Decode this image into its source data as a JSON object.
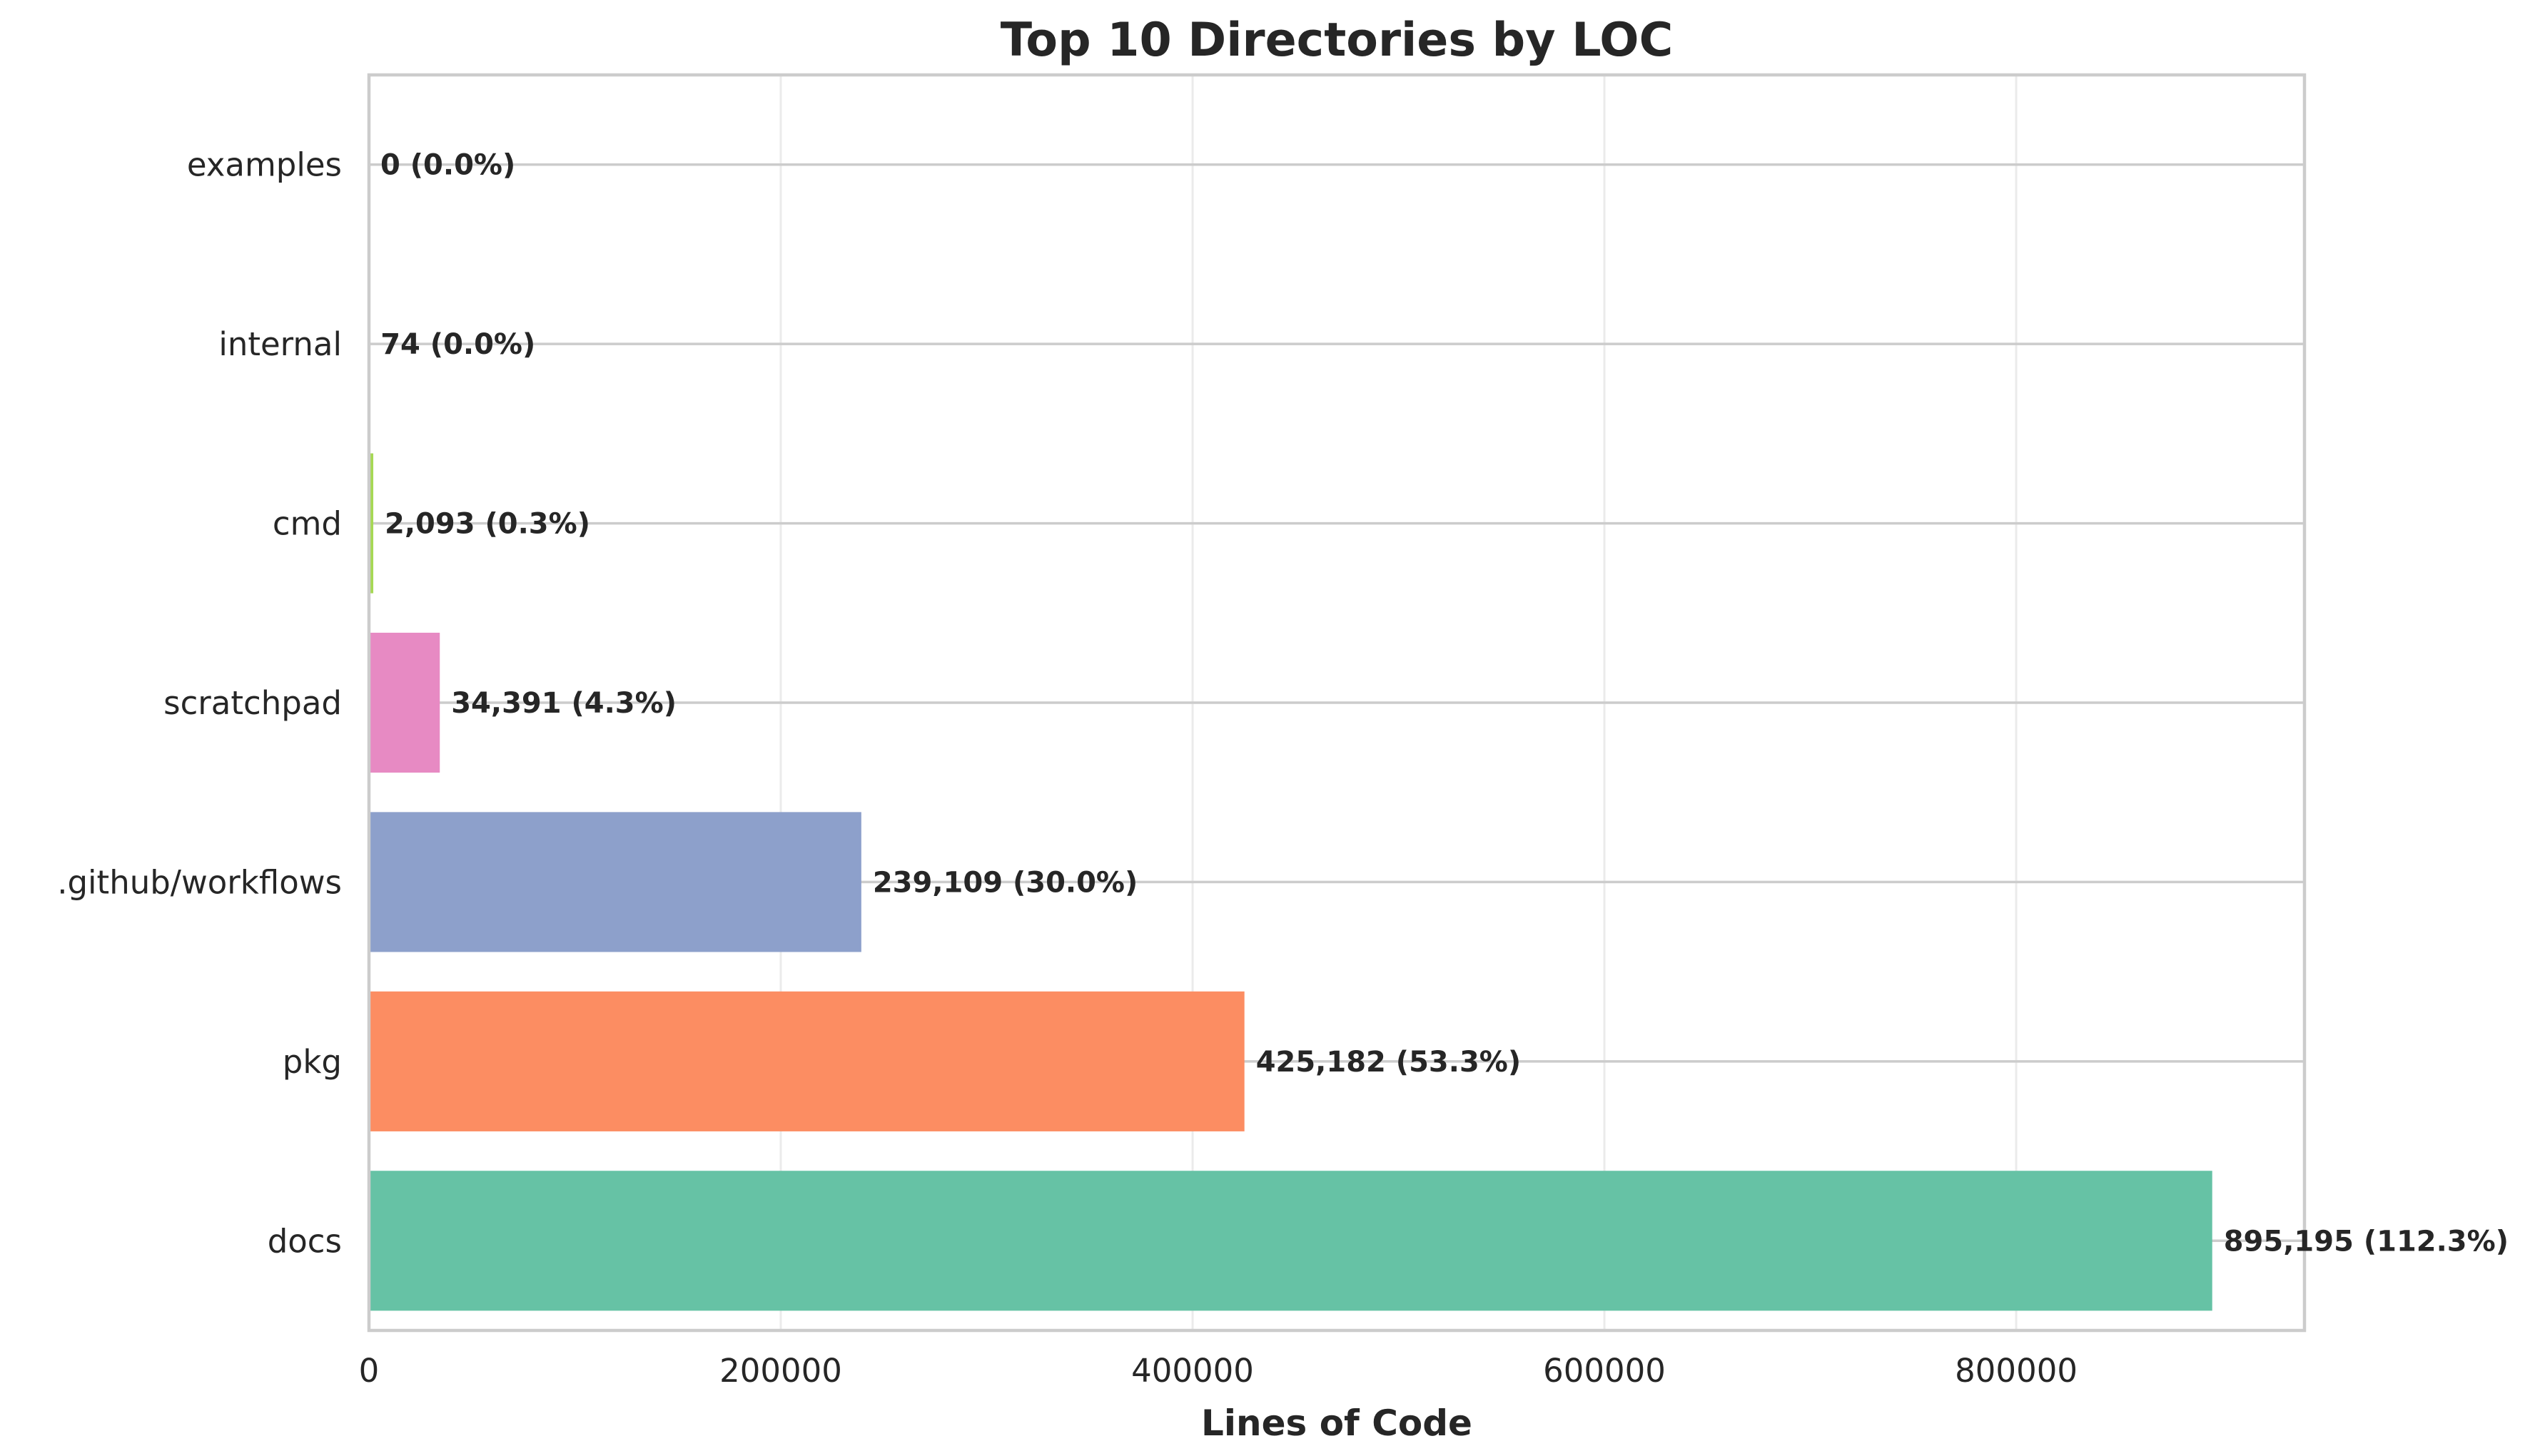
{
  "chart_data": {
    "type": "bar",
    "orientation": "horizontal",
    "title": "Top 10 Directories by LOC",
    "xlabel": "Lines of Code",
    "ylabel": "",
    "xlim": [
      0,
      940000
    ],
    "xticks": [
      0,
      200000,
      400000,
      600000,
      800000
    ],
    "xtick_labels": [
      "0",
      "200000",
      "400000",
      "600000",
      "800000"
    ],
    "grid": true,
    "categories": [
      "docs",
      "pkg",
      ".github/workflows",
      "scratchpad",
      "cmd",
      "internal",
      "examples"
    ],
    "values": [
      895195,
      425182,
      239109,
      34391,
      2093,
      74,
      0
    ],
    "labels": [
      "895,195 (112.3%)",
      "425,182 (53.3%)",
      "239,109 (30.0%)",
      "34,391 (4.3%)",
      "2,093 (0.3%)",
      "74 (0.0%)",
      "0 (0.0%)"
    ],
    "colors": [
      "#66c2a5",
      "#fc8d62",
      "#8da0cb",
      "#e78ac3",
      "#a6d854",
      "#ffd92f",
      "#e5c494"
    ]
  }
}
